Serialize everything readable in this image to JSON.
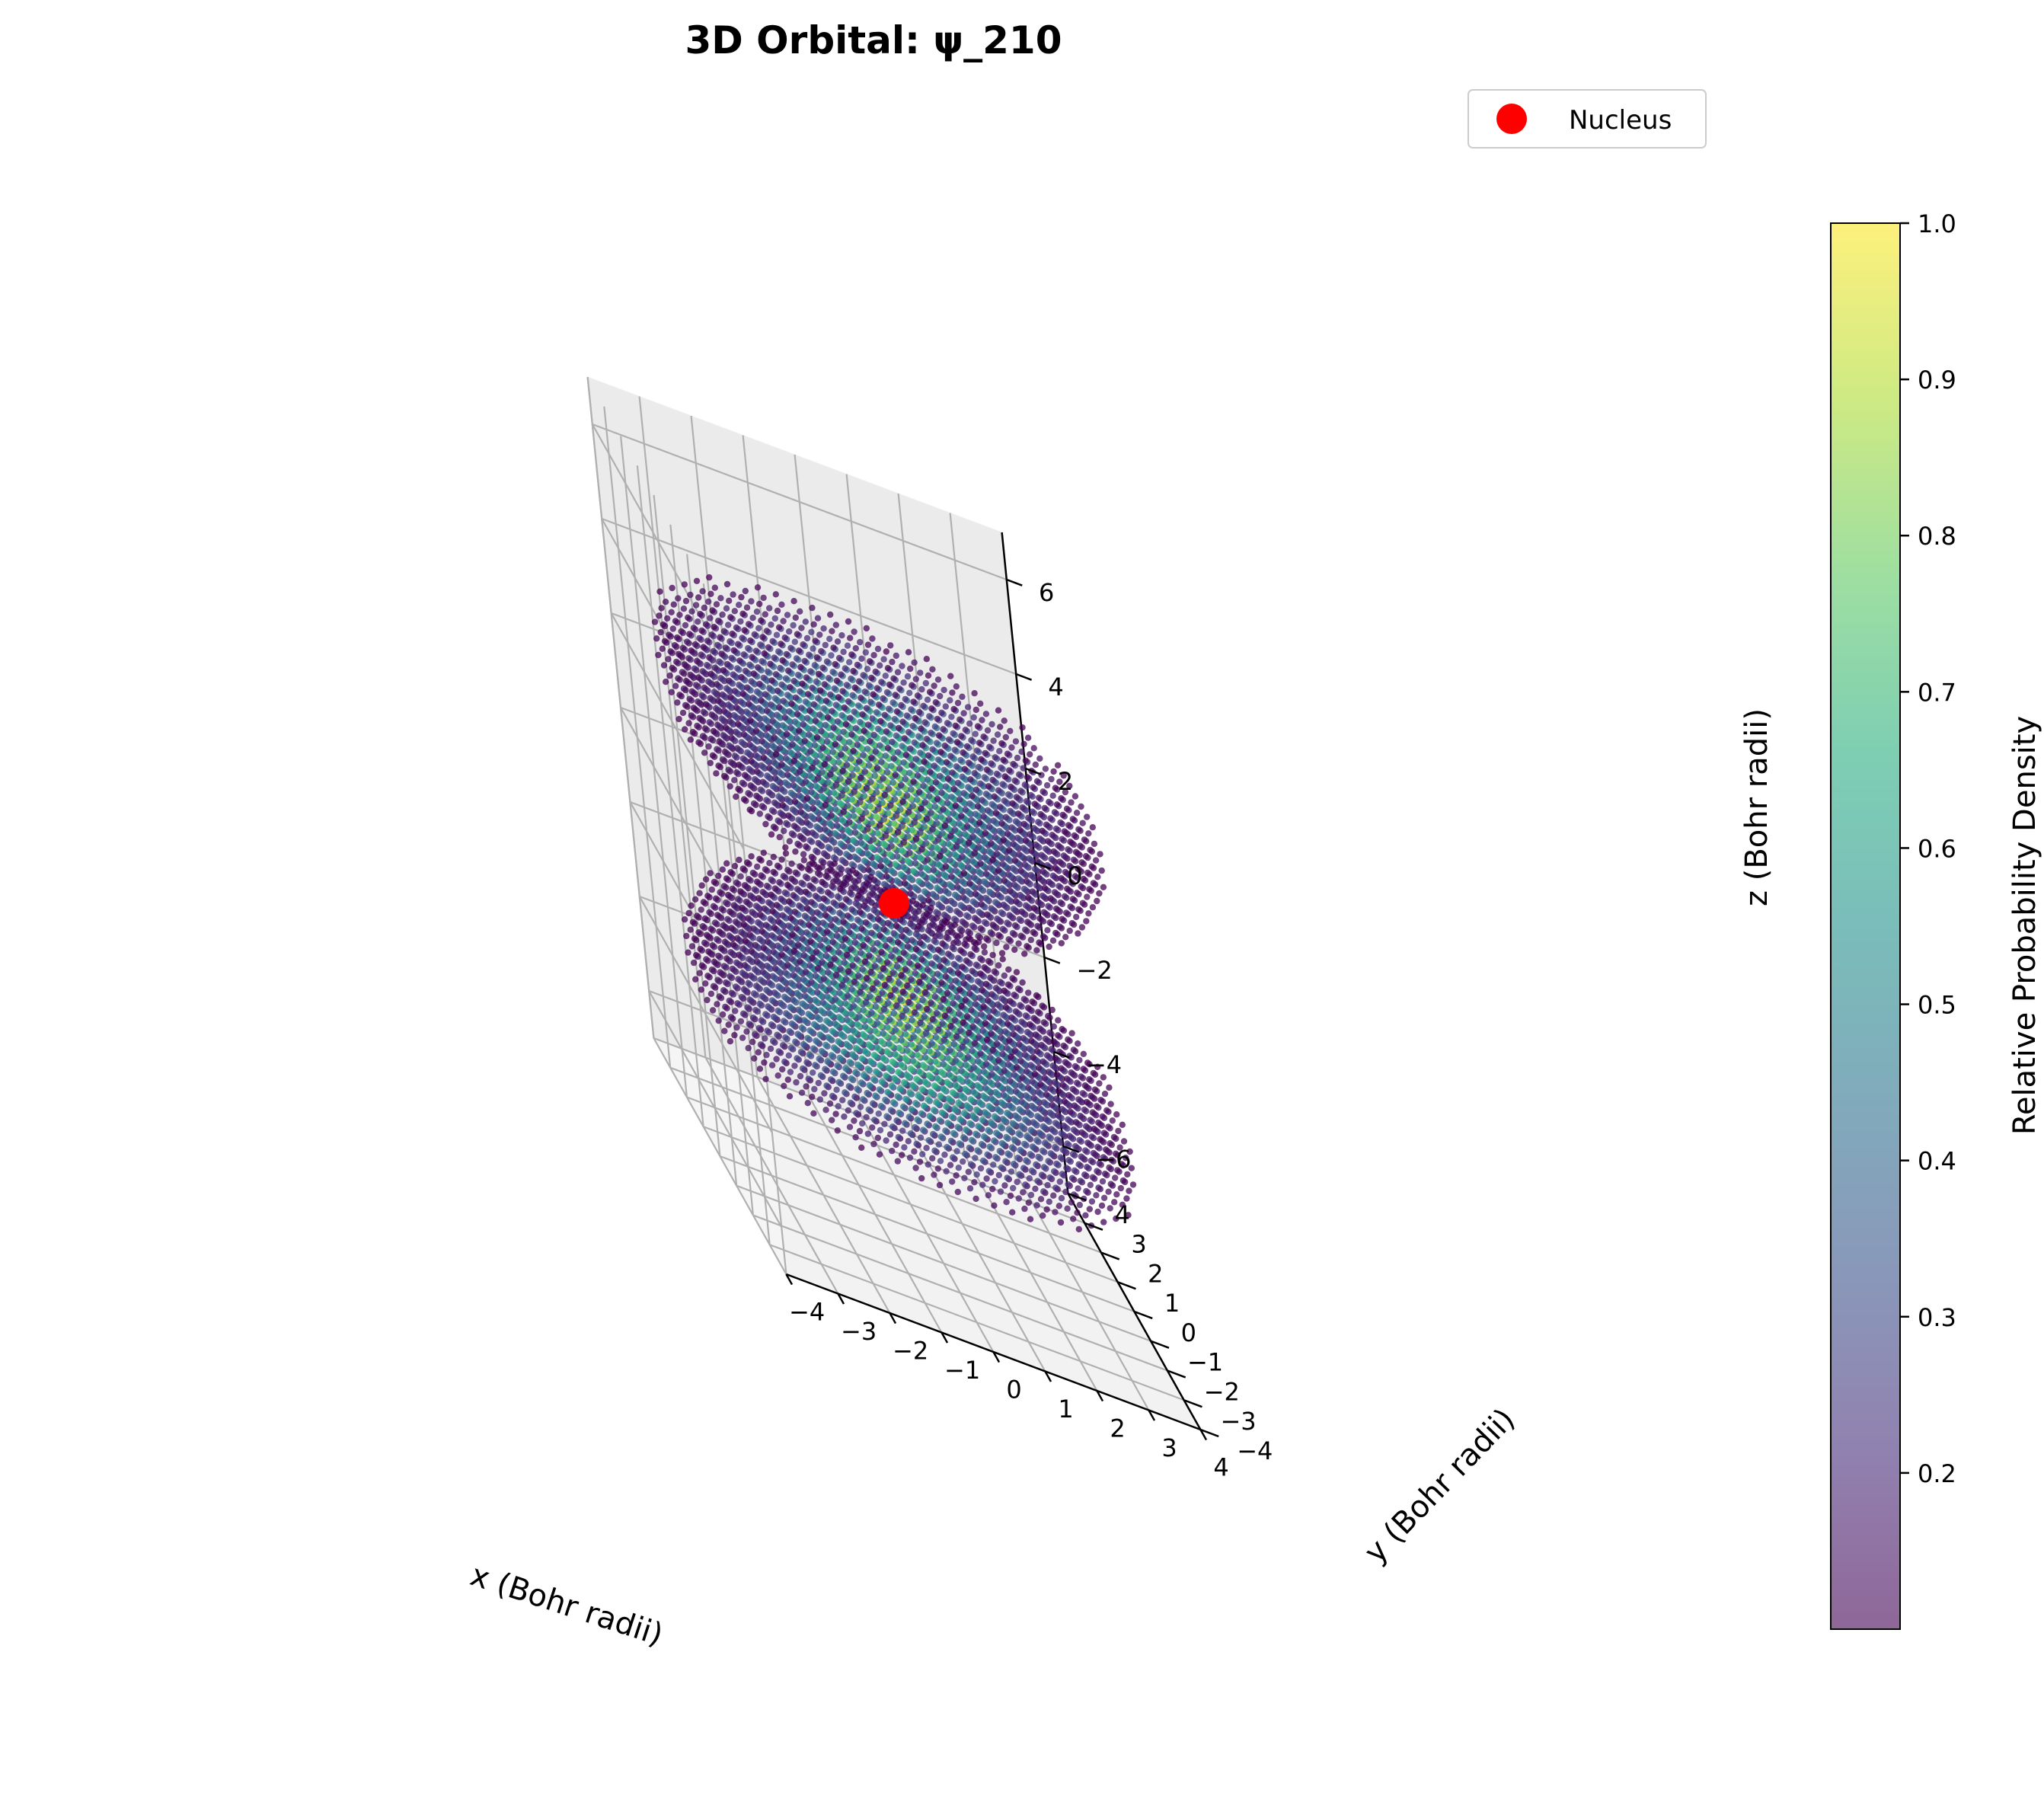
{
  "chart_data": {
    "type": "scatter",
    "title": "3D Orbital: ψ_210",
    "xlabel": "x (Bohr radii)",
    "ylabel": "y (Bohr radii)",
    "zlabel": "z (Bohr radii)",
    "xlim": [
      -4,
      4
    ],
    "ylim": [
      -4,
      4
    ],
    "zlim": [
      -7,
      7
    ],
    "x_ticks": [
      "−4",
      "−3",
      "−2",
      "−1",
      "0",
      "1",
      "2",
      "3",
      "4"
    ],
    "y_ticks": [
      "−4",
      "−3",
      "−2",
      "−1",
      "0",
      "1",
      "2",
      "3",
      "4"
    ],
    "z_ticks": [
      "−6",
      "−4",
      "−2",
      "0",
      "2",
      "4",
      "6"
    ],
    "grid": true,
    "legend": {
      "position": "top-right",
      "entries": [
        {
          "label": "Nucleus",
          "color": "#ff0000"
        }
      ]
    },
    "nucleus": {
      "x": 0,
      "y": 0,
      "z": 0
    },
    "orbital": {
      "n": 2,
      "l": 1,
      "m": 0,
      "grid_step_bohr": 0.35,
      "density_threshold": 0.1
    },
    "colorbar": {
      "label": "Relative Probability Density",
      "colormap": "viridis",
      "alpha": 0.6,
      "range": [
        0.1,
        1.0
      ],
      "ticks": [
        "0.2",
        "0.3",
        "0.4",
        "0.5",
        "0.6",
        "0.7",
        "0.8",
        "0.9",
        "1.0"
      ]
    }
  }
}
